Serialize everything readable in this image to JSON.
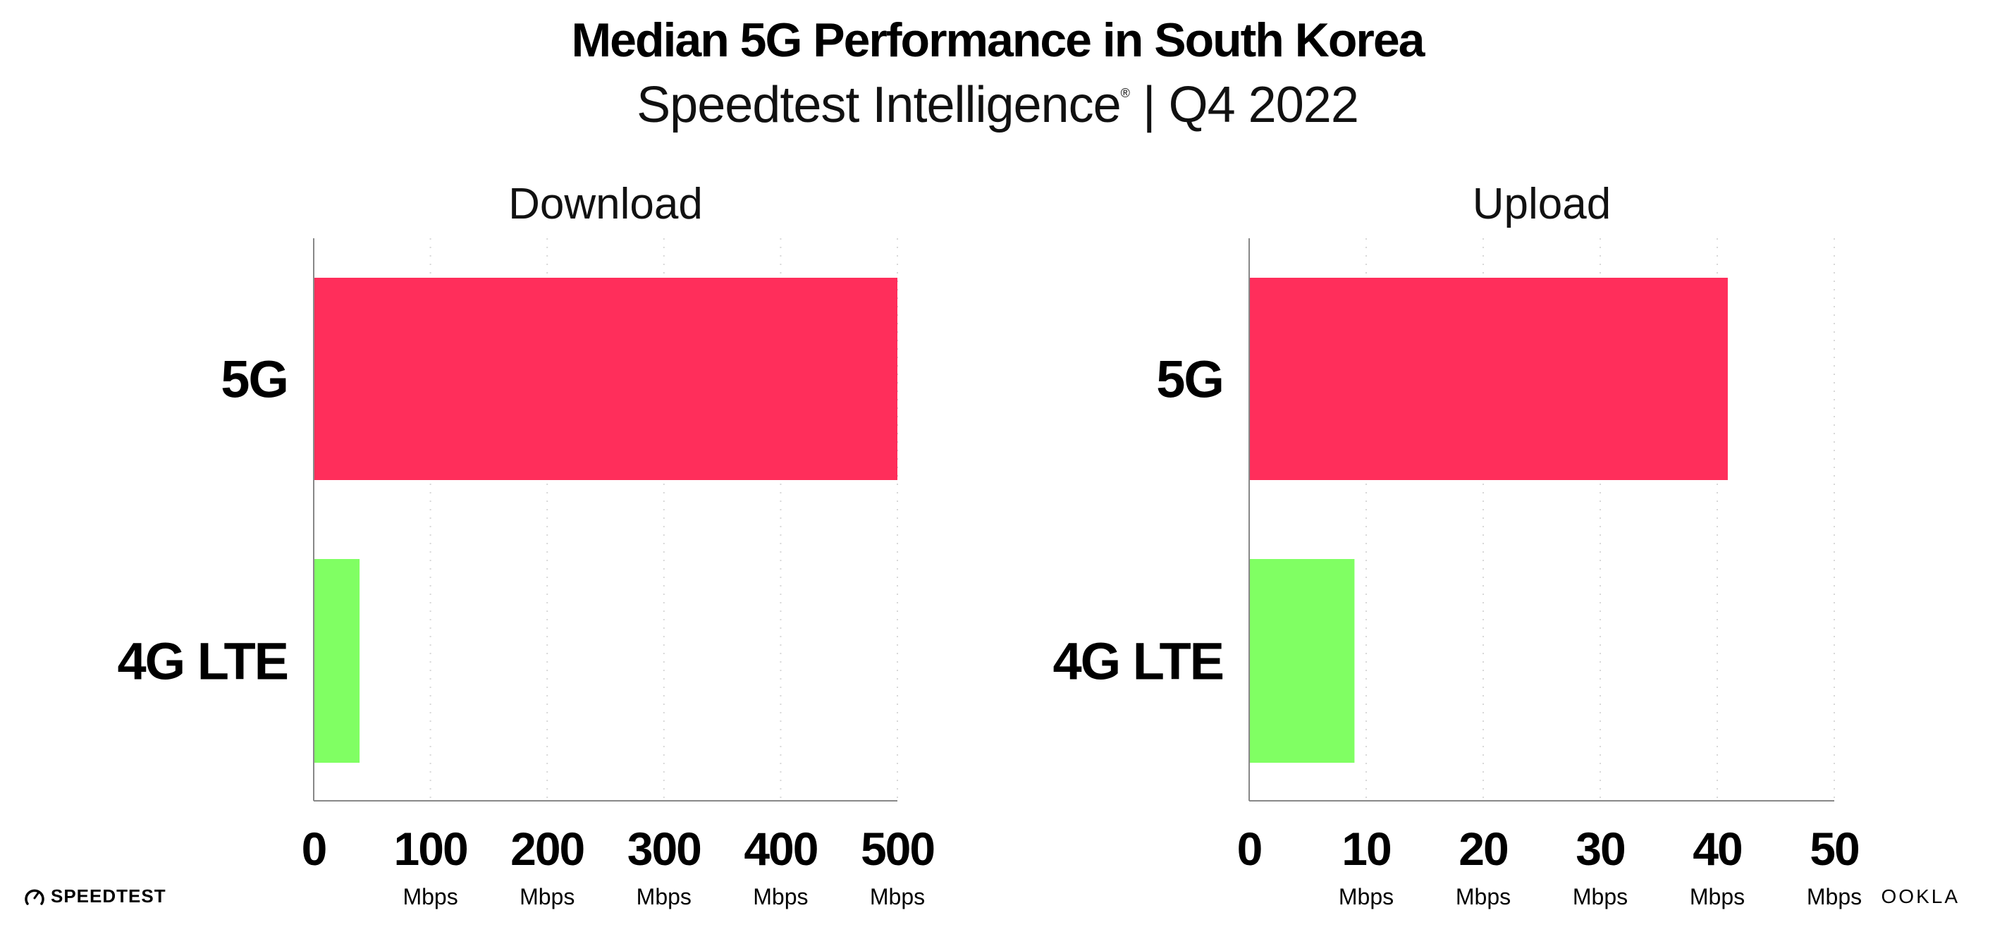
{
  "title": "Median 5G Performance in South Korea",
  "subtitle": "Speedtest Intelligence",
  "subtitle_mark": "®",
  "subtitle_suffix": " | Q4 2022",
  "footer": {
    "left_logo": "SPEEDTEST",
    "right_logo": "OOKLA"
  },
  "colors": {
    "5G": "#FF2E5B",
    "4G LTE": "#80FF63",
    "grid": "#d8d8d8",
    "axis": "#888888"
  },
  "chart_data": [
    {
      "type": "bar",
      "orientation": "horizontal",
      "title": "Download",
      "categories": [
        "5G",
        "4G LTE"
      ],
      "values": [
        500.0,
        39.3
      ],
      "xlim": [
        0,
        500
      ],
      "ticks": [
        0,
        100,
        200,
        300,
        400,
        500
      ],
      "tick_labels": [
        "0",
        "100",
        "200",
        "300",
        "400",
        "500"
      ],
      "tick_unit": "Mbps",
      "grid": true
    },
    {
      "type": "bar",
      "orientation": "horizontal",
      "title": "Upload",
      "categories": [
        "5G",
        "4G LTE"
      ],
      "values": [
        40.9,
        9.0
      ],
      "xlim": [
        0,
        50
      ],
      "ticks": [
        0,
        10,
        20,
        30,
        40,
        50
      ],
      "tick_labels": [
        "0",
        "10",
        "20",
        "30",
        "40",
        "50"
      ],
      "tick_unit": "Mbps",
      "grid": true
    }
  ]
}
